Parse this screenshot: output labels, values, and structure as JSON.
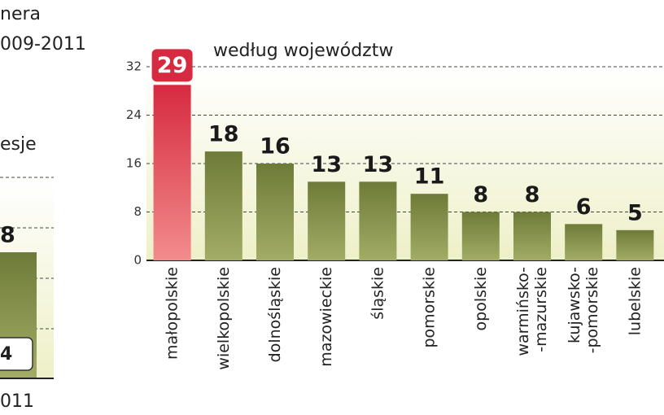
{
  "chart_data": {
    "type": "bar",
    "subtitle": "według województw",
    "categories": [
      "małopolskie",
      "wielkopolskie",
      "dolnośląskie",
      "mazowieckie",
      "śląskie",
      "pomorskie",
      "opolskie",
      "warmińsko-\n-mazurskie",
      "kujawsko-\n-pomorskie",
      "lubelskie"
    ],
    "values": [
      29,
      18,
      16,
      13,
      13,
      11,
      8,
      8,
      6,
      5
    ],
    "color": "#7d8a45",
    "highlight_color": "#d62a40",
    "ylim": [
      0,
      32
    ],
    "yticks": [
      0,
      8,
      16,
      24,
      32
    ],
    "grid": true
  },
  "cropped_left": {
    "title_lines": [
      "nera",
      "009-2011"
    ],
    "subtitle": "esje",
    "labels": [
      "8",
      "4"
    ],
    "category": "011"
  }
}
